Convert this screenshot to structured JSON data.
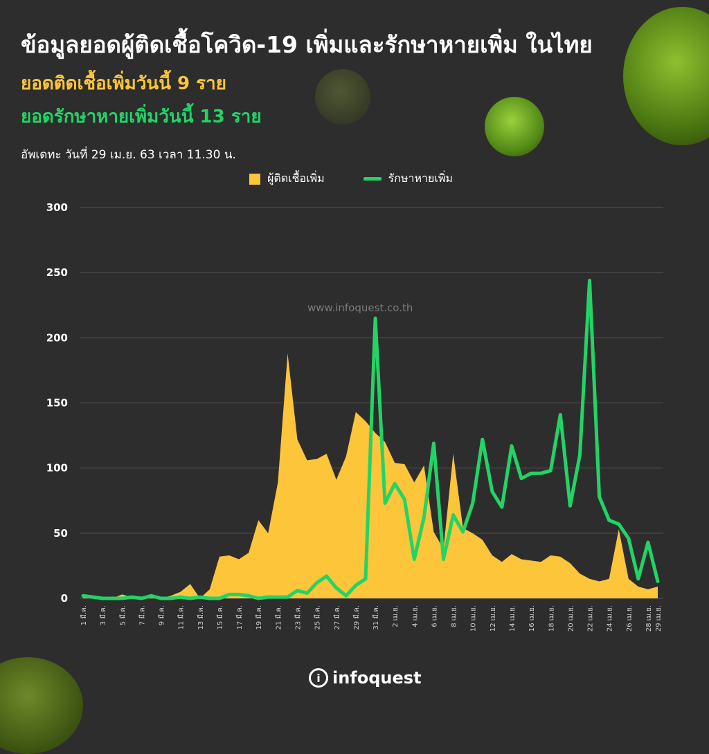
{
  "header": {
    "title": "ข้อมูลยอดผู้ติดเชื้อโควิด-19 เพิ่มและรักษาหายเพิ่ม ในไทย",
    "subtitle_infected": "ยอดติดเชื้อเพิ่มวันนี้ 9 ราย",
    "subtitle_recovered": "ยอดรักษาหายเพิ่มวันนี้ 13 ราย",
    "updated": "อัพเดทะ วันที่ 29 เม.ย. 63 เวลา 11.30 น."
  },
  "watermark": "www.infoquest.co.th",
  "logo": {
    "mark": "i",
    "text": "infoquest",
    "icon": "infoquest-logo-icon"
  },
  "colors": {
    "background": "#2d2d2d",
    "infected": "#fdc53a",
    "recovered": "#22d465",
    "grid": "#555555"
  },
  "chart_data": {
    "type": "area",
    "legend_position": "top-center",
    "grid": true,
    "ylim": [
      0,
      300
    ],
    "yticks": [
      "0",
      "50",
      "100",
      "150",
      "200",
      "250",
      "300"
    ],
    "categories": [
      "1 มี.ค.",
      "2 มี.ค.",
      "3 มี.ค.",
      "4 มี.ค.",
      "5 มี.ค.",
      "6 มี.ค.",
      "7 มี.ค.",
      "8 มี.ค.",
      "9 มี.ค.",
      "10 มี.ค.",
      "11 มี.ค.",
      "12 มี.ค.",
      "13 มี.ค.",
      "14 มี.ค.",
      "15 มี.ค.",
      "16 มี.ค.",
      "17 มี.ค.",
      "18 มี.ค.",
      "19 มี.ค.",
      "20 มี.ค.",
      "21 มี.ค.",
      "22 มี.ค.",
      "23 มี.ค.",
      "24 มี.ค.",
      "25 มี.ค.",
      "26 มี.ค.",
      "27 มี.ค.",
      "28 มี.ค.",
      "29 มี.ค.",
      "30 มี.ค.",
      "31 มี.ค.",
      "1 เม.ย.",
      "2 เม.ย.",
      "3 เม.ย.",
      "4 เม.ย.",
      "5 เม.ย.",
      "6 เม.ย.",
      "7 เม.ย.",
      "8 เม.ย.",
      "9 เม.ย.",
      "10 เม.ย.",
      "11 เม.ย.",
      "12 เม.ย.",
      "13 เม.ย.",
      "14 เม.ย.",
      "15 เม.ย.",
      "16 เม.ย.",
      "17 เม.ย.",
      "18 เม.ย.",
      "19 เม.ย.",
      "20 เม.ย.",
      "21 เม.ย.",
      "22 เม.ย.",
      "23 เม.ย.",
      "24 เม.ย.",
      "25 เม.ย.",
      "26 เม.ย.",
      "27 เม.ย.",
      "28 เม.ย.",
      "29 เม.ย."
    ],
    "tick_labels": [
      "1 มี.ค.",
      "3 มี.ค.",
      "5 มี.ค.",
      "7 มี.ค.",
      "9 มี.ค.",
      "11 มี.ค.",
      "13 มี.ค.",
      "15 มี.ค.",
      "17 มี.ค.",
      "19 มี.ค.",
      "21 มี.ค.",
      "23 มี.ค.",
      "25 มี.ค.",
      "27 มี.ค.",
      "29 มี.ค.",
      "31 มี.ค.",
      "2 เม.ย.",
      "4 เม.ย.",
      "6 เม.ย.",
      "8 เม.ย.",
      "10 เม.ย.",
      "12 เม.ย.",
      "14 เม.ย.",
      "16 เม.ย.",
      "18 เม.ย.",
      "20 เม.ย.",
      "22 เม.ย.",
      "24 เม.ย.",
      "26 เม.ย.",
      "28 เม.ย.",
      "29 เม.ย."
    ],
    "series": [
      {
        "name": "ผู้ติดเชื้อเพิ่ม",
        "kind": "area",
        "values": [
          1,
          1,
          0,
          0,
          3,
          1,
          0,
          2,
          0,
          2,
          5,
          11,
          0,
          7,
          32,
          33,
          30,
          35,
          60,
          50,
          89,
          188,
          122,
          106,
          107,
          111,
          91,
          109,
          143,
          136,
          127,
          120,
          104,
          103,
          89,
          102,
          51,
          38,
          111,
          54,
          50,
          45,
          33,
          28,
          34,
          30,
          29,
          28,
          33,
          32,
          27,
          19,
          15,
          13,
          15,
          53,
          15,
          9,
          7,
          9
        ]
      },
      {
        "name": "รักษาหายเพิ่ม",
        "kind": "line",
        "values": [
          2,
          1,
          0,
          0,
          0,
          1,
          0,
          2,
          0,
          0,
          1,
          0,
          1,
          0,
          0,
          3,
          3,
          2,
          0,
          1,
          1,
          1,
          6,
          4,
          12,
          17,
          8,
          2,
          10,
          15,
          215,
          73,
          88,
          76,
          30,
          62,
          119,
          30,
          64,
          51,
          73,
          122,
          82,
          70,
          117,
          92,
          96,
          96,
          98,
          141,
          71,
          110,
          244,
          78,
          60,
          57,
          46,
          15,
          43,
          13
        ]
      }
    ]
  }
}
